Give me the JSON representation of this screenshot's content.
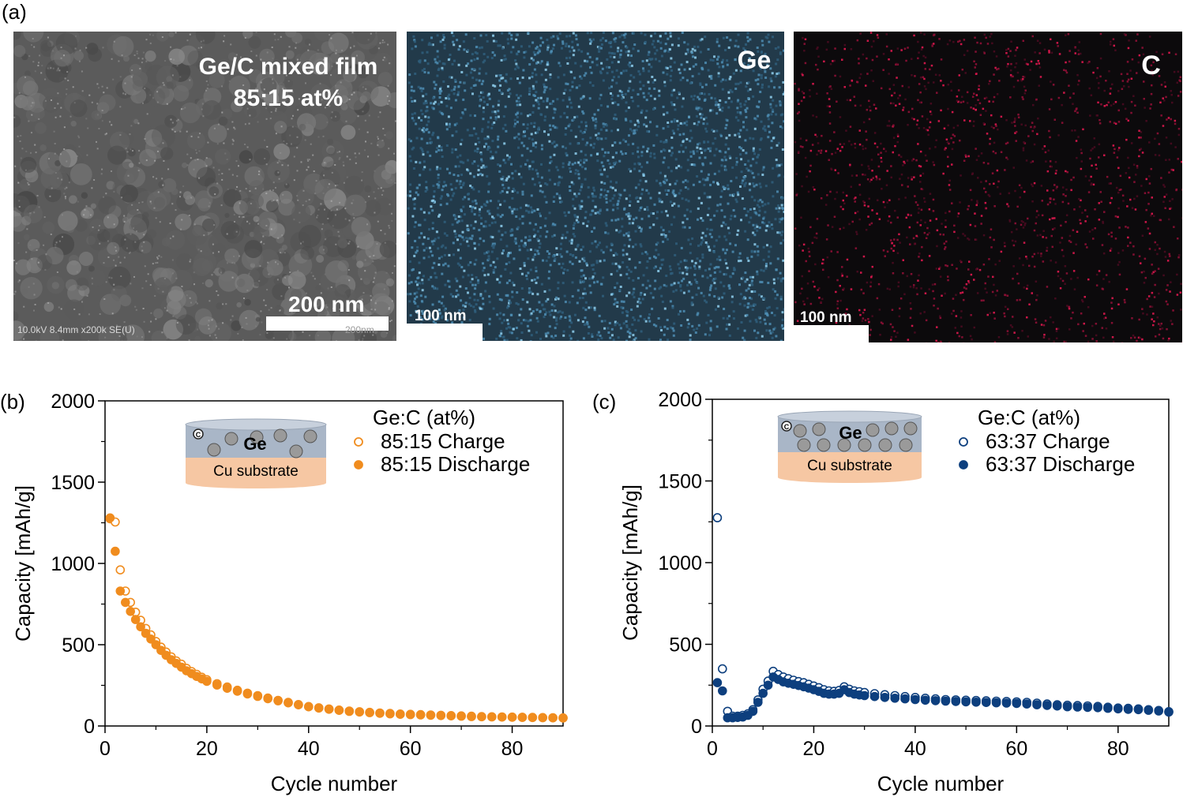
{
  "panel_a": {
    "label": "(a)",
    "sem": {
      "title_line1": "Ge/C mixed film",
      "title_line2": "85:15 at%",
      "scale": "200 nm",
      "info": "10.0kV 8.4mm x200k SE(U)",
      "info_scale": "200nm"
    },
    "ge_map": {
      "element": "Ge",
      "scale": "100 nm",
      "color": "#4e8fb5"
    },
    "c_map": {
      "element": "C",
      "scale": "100 nm",
      "color": "#c01040"
    }
  },
  "chart_data": [
    {
      "type": "scatter",
      "panel_label": "(b)",
      "xlabel": "Cycle number",
      "ylabel": "Capacity [mAh/g]",
      "xlim": [
        0,
        90
      ],
      "ylim": [
        0,
        2000
      ],
      "xticks": [
        0,
        20,
        40,
        60,
        80
      ],
      "yticks": [
        0,
        500,
        1000,
        1500,
        2000
      ],
      "legend_title": "Ge:C (at%)",
      "legend_position": "top-right",
      "inset": {
        "top_label": "Ge",
        "bottom_label": "Cu substrate",
        "particle_label": "C"
      },
      "series": [
        {
          "name": "85:15 Charge",
          "marker": "open-circle",
          "color": "#f08c1e",
          "x": [
            1,
            2,
            3,
            4,
            5,
            6,
            7,
            8,
            9,
            10,
            11,
            12,
            13,
            14,
            15,
            16,
            17,
            18,
            19,
            20,
            22,
            24,
            26,
            28,
            30,
            32,
            34,
            36,
            38,
            40,
            42,
            44,
            46,
            48,
            50,
            52,
            54,
            56,
            58,
            60,
            62,
            64,
            66,
            68,
            70,
            72,
            74,
            76,
            78,
            80,
            82,
            84,
            86,
            88,
            90
          ],
          "y": [
            1275,
            1255,
            960,
            830,
            760,
            700,
            650,
            600,
            560,
            520,
            485,
            455,
            425,
            400,
            380,
            355,
            335,
            318,
            300,
            285,
            260,
            240,
            220,
            202,
            187,
            172,
            158,
            145,
            132,
            120,
            112,
            105,
            98,
            92,
            88,
            84,
            80,
            77,
            74,
            72,
            70,
            68,
            66,
            64,
            62,
            60,
            58,
            57,
            56,
            55,
            54,
            53,
            52,
            51,
            50
          ]
        },
        {
          "name": "85:15 Discharge",
          "marker": "filled-circle",
          "color": "#f08c1e",
          "x": [
            1,
            2,
            3,
            4,
            5,
            6,
            7,
            8,
            9,
            10,
            11,
            12,
            13,
            14,
            15,
            16,
            17,
            18,
            19,
            20,
            22,
            24,
            26,
            28,
            30,
            32,
            34,
            36,
            38,
            40,
            42,
            44,
            46,
            48,
            50,
            52,
            54,
            56,
            58,
            60,
            62,
            64,
            66,
            68,
            70,
            72,
            74,
            76,
            78,
            80,
            82,
            84,
            86,
            88,
            90
          ],
          "y": [
            1280,
            1075,
            830,
            760,
            705,
            655,
            610,
            570,
            535,
            500,
            465,
            435,
            408,
            385,
            362,
            340,
            322,
            305,
            290,
            275,
            252,
            232,
            214,
            197,
            182,
            168,
            155,
            142,
            130,
            118,
            110,
            103,
            96,
            90,
            86,
            82,
            78,
            75,
            72,
            70,
            68,
            66,
            64,
            62,
            60,
            58,
            57,
            56,
            55,
            54,
            53,
            52,
            51,
            50,
            49
          ]
        }
      ]
    },
    {
      "type": "scatter",
      "panel_label": "(c)",
      "xlabel": "Cycle number",
      "ylabel": "Capacity [mAh/g]",
      "xlim": [
        0,
        90
      ],
      "ylim": [
        0,
        2000
      ],
      "xticks": [
        0,
        20,
        40,
        60,
        80
      ],
      "yticks": [
        0,
        500,
        1000,
        1500,
        2000
      ],
      "legend_title": "Ge:C (at%)",
      "legend_position": "top-right",
      "inset": {
        "top_label": "Ge",
        "bottom_label": "Cu substrate",
        "particle_label": "C"
      },
      "series": [
        {
          "name": "63:37 Charge",
          "marker": "open-circle",
          "color": "#0d3f7e",
          "x": [
            1,
            2,
            3,
            4,
            5,
            6,
            7,
            8,
            9,
            10,
            11,
            12,
            13,
            14,
            15,
            16,
            17,
            18,
            19,
            20,
            21,
            22,
            23,
            24,
            25,
            26,
            27,
            28,
            29,
            30,
            32,
            34,
            36,
            38,
            40,
            42,
            44,
            46,
            48,
            50,
            52,
            54,
            56,
            58,
            60,
            62,
            64,
            66,
            68,
            70,
            72,
            74,
            76,
            78,
            80,
            82,
            84,
            86,
            88,
            90
          ],
          "y": [
            1275,
            350,
            90,
            60,
            60,
            65,
            75,
            100,
            160,
            225,
            275,
            335,
            315,
            300,
            290,
            280,
            272,
            265,
            255,
            245,
            235,
            222,
            215,
            212,
            218,
            240,
            225,
            215,
            210,
            205,
            198,
            192,
            186,
            180,
            175,
            170,
            166,
            162,
            160,
            158,
            156,
            154,
            152,
            150,
            148,
            145,
            140,
            135,
            130,
            127,
            125,
            123,
            120,
            115,
            110,
            108,
            105,
            100,
            95,
            88
          ]
        },
        {
          "name": "63:37 Discharge",
          "marker": "filled-circle",
          "color": "#0d3f7e",
          "x": [
            1,
            2,
            3,
            4,
            5,
            6,
            7,
            8,
            9,
            10,
            11,
            12,
            13,
            14,
            15,
            16,
            17,
            18,
            19,
            20,
            21,
            22,
            23,
            24,
            25,
            26,
            27,
            28,
            29,
            30,
            32,
            34,
            36,
            38,
            40,
            42,
            44,
            46,
            48,
            50,
            52,
            54,
            56,
            58,
            60,
            62,
            64,
            66,
            68,
            70,
            72,
            74,
            76,
            78,
            80,
            82,
            84,
            86,
            88,
            90
          ],
          "y": [
            265,
            215,
            50,
            50,
            52,
            55,
            65,
            90,
            145,
            200,
            250,
            300,
            285,
            270,
            262,
            255,
            248,
            240,
            232,
            222,
            212,
            200,
            195,
            195,
            200,
            222,
            205,
            195,
            190,
            186,
            180,
            175,
            170,
            166,
            162,
            158,
            155,
            152,
            150,
            148,
            146,
            144,
            142,
            140,
            138,
            135,
            130,
            126,
            122,
            118,
            116,
            114,
            112,
            108,
            105,
            102,
            100,
            96,
            92,
            85
          ]
        }
      ]
    }
  ]
}
